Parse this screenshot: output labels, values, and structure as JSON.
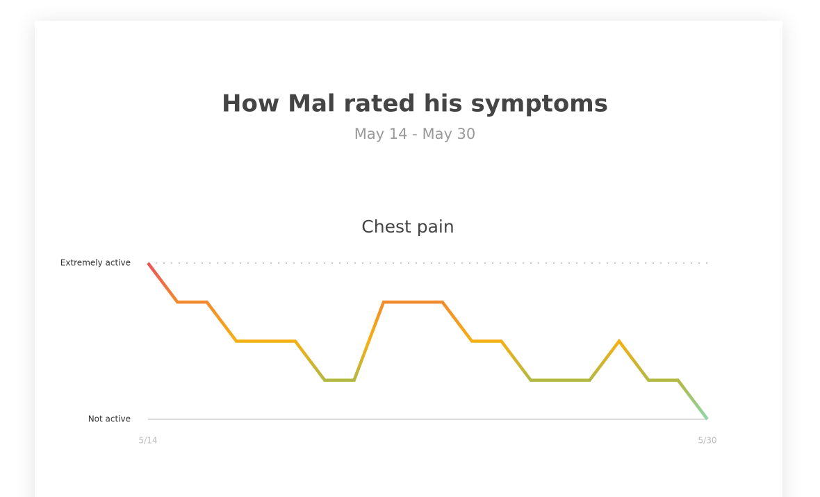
{
  "header": {
    "title": "How Mal rated his symptoms",
    "subtitle": "May 14 - May 30"
  },
  "chart_data": {
    "type": "line",
    "title": "Chest pain",
    "categories": [
      "5/14",
      null,
      null,
      null,
      null,
      null,
      null,
      null,
      null,
      null,
      null,
      null,
      null,
      null,
      null,
      null,
      null,
      null,
      null,
      "5/30"
    ],
    "values": [
      4,
      3,
      3,
      2,
      2,
      2,
      1,
      1,
      3,
      3,
      3,
      2,
      2,
      1,
      1,
      1,
      2,
      1,
      1,
      0
    ],
    "ylim": [
      0,
      4
    ],
    "yticks": [
      {
        "value": 0,
        "label": "Not active"
      },
      {
        "value": 4,
        "label": "Extremely active"
      }
    ],
    "level_colors": [
      "#8ed6aa",
      "#b3b843",
      "#f5b014",
      "#f28a2e",
      "#ea5459"
    ],
    "grid": true
  }
}
